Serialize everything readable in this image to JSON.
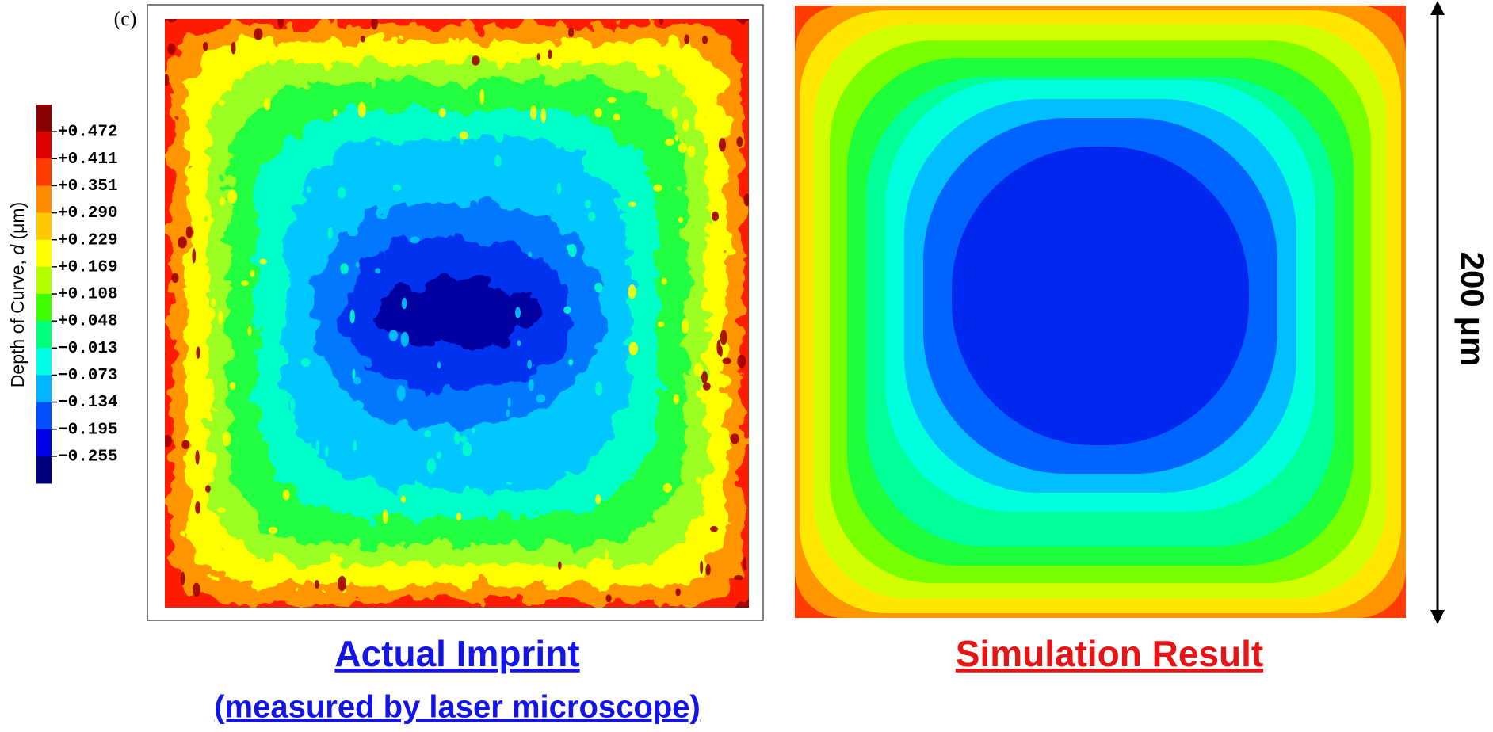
{
  "panel_label": "(c)",
  "colorbar": {
    "title": [
      "Depth of Curve, ",
      "d",
      " (μm)"
    ],
    "ticks": [
      "+0.472",
      "+0.411",
      "+0.351",
      "+0.290",
      "+0.229",
      "+0.169",
      "+0.108",
      "+0.048",
      "−0.013",
      "−0.073",
      "−0.134",
      "−0.195",
      "−0.255"
    ]
  },
  "captions": {
    "left": [
      "Actual Imprint",
      "(measured by laser microscope)"
    ],
    "right": "Simulation Result"
  },
  "scale_bar": "200 μm"
}
